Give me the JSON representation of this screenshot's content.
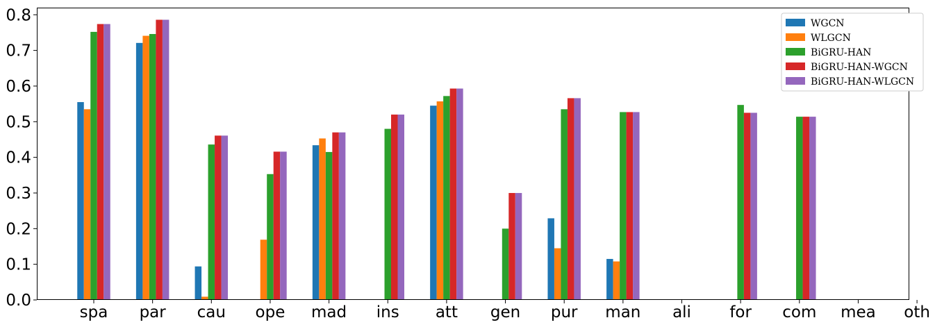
{
  "chart_data": {
    "type": "bar",
    "title": "",
    "xlabel": "",
    "ylabel": "",
    "ylim": [
      0,
      0.82
    ],
    "yticks": [
      "0.0",
      "0.1",
      "0.2",
      "0.3",
      "0.4",
      "0.5",
      "0.6",
      "0.7",
      "0.8"
    ],
    "ytick_values": [
      0,
      0.1,
      0.2,
      0.3,
      0.4,
      0.5,
      0.6,
      0.7,
      0.8
    ],
    "grid": false,
    "legend_position": "top-right",
    "categories": [
      "spa",
      "par",
      "cau",
      "ope",
      "mad",
      "ins",
      "att",
      "gen",
      "pur",
      "man",
      "ali",
      "for",
      "com",
      "mea",
      "oth"
    ],
    "series": [
      {
        "name": "WGCN",
        "color": "#1f77b4",
        "values": [
          0.555,
          0.721,
          0.094,
          0,
          0.434,
          0,
          0.545,
          0,
          0.229,
          0.115,
          0,
          0,
          0,
          0,
          0
        ]
      },
      {
        "name": "WLGCN",
        "color": "#ff7f0e",
        "values": [
          0.535,
          0.741,
          0.009,
          0.169,
          0.453,
          0,
          0.557,
          0,
          0.145,
          0.108,
          0,
          0,
          0,
          0,
          0
        ]
      },
      {
        "name": "BiGRU-HAN",
        "color": "#2ca02c",
        "values": [
          0.752,
          0.746,
          0.436,
          0.353,
          0.415,
          0.48,
          0.572,
          0.2,
          0.535,
          0.527,
          0,
          0.547,
          0.514,
          0,
          0
        ]
      },
      {
        "name": "BiGRU-HAN-WGCN",
        "color": "#d62728",
        "values": [
          0.774,
          0.786,
          0.461,
          0.416,
          0.47,
          0.52,
          0.593,
          0.3,
          0.566,
          0.527,
          0,
          0.525,
          0.514,
          0,
          0
        ]
      },
      {
        "name": "BiGRU-HAN-WLGCN",
        "color": "#9467bd",
        "values": [
          0.774,
          0.786,
          0.461,
          0.416,
          0.47,
          0.52,
          0.593,
          0.3,
          0.566,
          0.527,
          0,
          0.525,
          0.514,
          0,
          0
        ]
      }
    ]
  }
}
